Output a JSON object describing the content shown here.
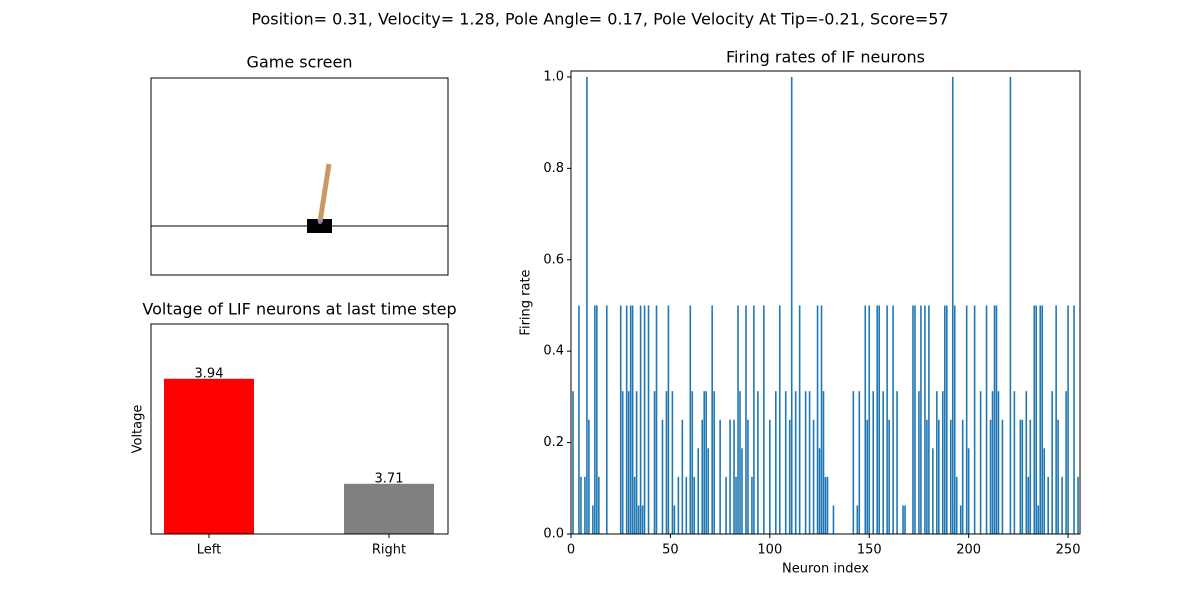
{
  "title": "Position= 0.31, Velocity= 1.28, Pole Angle= 0.17, Pole Velocity At Tip=-0.21, Score=57",
  "chart_data": [
    {
      "type": "image",
      "title": "Game screen"
    },
    {
      "type": "bar",
      "title": "Voltage of LIF neurons at last time step",
      "ylabel": "Voltage",
      "categories": [
        "Left",
        "Right"
      ],
      "values": [
        3.94,
        3.71
      ],
      "colors": [
        "#ff0000",
        "#808080"
      ],
      "ylim": [
        3.6,
        4.06
      ]
    },
    {
      "type": "histbar",
      "title": "Firing rates of IF neurons",
      "xlabel": "Neuron index",
      "ylabel": "Firing rate",
      "color": "#1f77b4",
      "xlim": [
        0,
        256
      ],
      "ylim": [
        0,
        1.013
      ],
      "xticks": [
        0,
        50,
        100,
        150,
        200,
        250
      ],
      "yticks": [
        {
          "value": 0,
          "label": "0.0"
        },
        {
          "value": 0.2,
          "label": "0.2"
        },
        {
          "value": 0.4,
          "label": "0.4"
        },
        {
          "value": 0.6,
          "label": "0.6"
        },
        {
          "value": 0.8,
          "label": "0.8"
        },
        {
          "value": 1,
          "label": "1.0"
        }
      ],
      "values": [
        0,
        0.3125,
        0,
        0,
        0.5,
        0.125,
        0,
        0.125,
        1,
        0.25,
        0,
        0.0625,
        0.5,
        0.5,
        0.125,
        0,
        0,
        0,
        0.5,
        0,
        0,
        0,
        0,
        0,
        0,
        0.5,
        0.3125,
        0,
        0.5,
        0.3125,
        0.5,
        0.5,
        0.125,
        0.3125,
        0.0625,
        0.5,
        0.0625,
        0.5,
        0,
        0.5,
        0,
        0,
        0.3125,
        0.5,
        0,
        0,
        0.25,
        0,
        0.3125,
        0.5,
        0,
        0.3125,
        0.0625,
        0,
        0.125,
        0,
        0.25,
        0,
        0.125,
        0,
        0.5,
        0.3125,
        0.125,
        0,
        0.1875,
        0,
        0.25,
        0.3125,
        0.3125,
        0.1875,
        0,
        0.5,
        0.3125,
        0,
        0,
        0.25,
        0,
        0,
        0.125,
        0,
        0.25,
        0,
        0.25,
        0.125,
        0.5,
        0.3125,
        0.1875,
        0,
        0.5,
        0.25,
        0,
        0.125,
        0.5,
        0,
        0.3125,
        0,
        0,
        0.5,
        0,
        0,
        0.25,
        0,
        0,
        0.3125,
        0,
        0.5,
        0,
        0,
        0.3125,
        0,
        0.25,
        1,
        0,
        0.3125,
        0,
        0.5,
        0,
        0,
        0.3125,
        0,
        0.3125,
        0,
        0.25,
        0,
        0.5,
        0.1875,
        0.5,
        0.3125,
        0.125,
        0.125,
        0,
        0,
        0.0625,
        0,
        0,
        0,
        0,
        0,
        0,
        0,
        0,
        0,
        0.3125,
        0,
        0.0625,
        0.3125,
        0,
        0,
        0.5,
        0.25,
        0.5,
        0,
        0.3125,
        0,
        0.5,
        0.5,
        0,
        0.3125,
        0,
        0.5,
        0.25,
        0,
        0.5,
        0,
        0.3125,
        0,
        0,
        0.0625,
        0.0625,
        0,
        0,
        0,
        0.5,
        0.5,
        0,
        0.3125,
        0.5,
        0,
        0.5,
        0.25,
        0.5,
        0,
        0.1875,
        0,
        0.3125,
        0.25,
        0,
        0.3125,
        0.5,
        0.5,
        0,
        0.25,
        1,
        0.5,
        0.125,
        0,
        0.0625,
        0.25,
        0,
        0.5,
        0.1875,
        0,
        0,
        0.5,
        0,
        0,
        0.3125,
        0,
        0,
        0.5,
        0,
        0.25,
        0.3125,
        0.5,
        0.5,
        0.3125,
        0,
        0.25,
        0,
        0,
        0,
        1,
        0,
        0.3125,
        0,
        0,
        0.25,
        0.25,
        0,
        0.3125,
        0.125,
        0.25,
        0,
        0.5,
        0.5,
        0.0625,
        0.5,
        0.5,
        0.1875,
        0,
        0.125,
        0,
        0.3125,
        0,
        0.5,
        0.25,
        0,
        0.125,
        0,
        0.3125,
        0.5,
        0,
        0,
        0.5,
        0,
        0.125
      ]
    }
  ]
}
